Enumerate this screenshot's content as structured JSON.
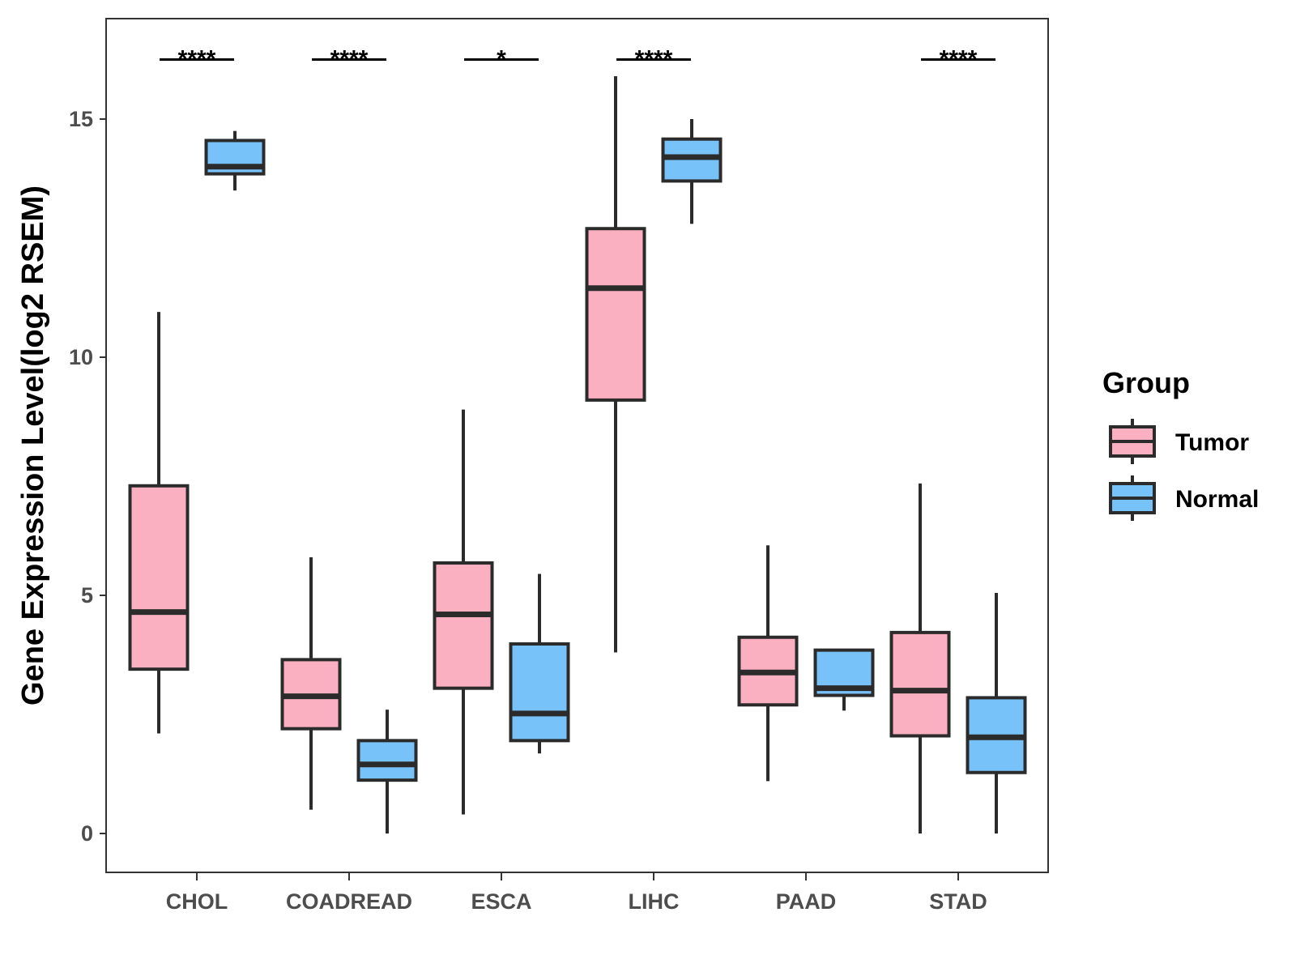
{
  "chart_data": {
    "type": "boxplot",
    "title": "",
    "xlabel": "",
    "ylabel": "Gene Expression Level(log2 RSEM)",
    "ylim": [
      -0.8,
      17.1
    ],
    "yticks": [
      0,
      5,
      10,
      15
    ],
    "categories": [
      "CHOL",
      "COADREAD",
      "ESCA",
      "LIHC",
      "PAAD",
      "STAD"
    ],
    "grid": false,
    "legend": {
      "title": "Group",
      "position": "right",
      "entries": [
        "Tumor",
        "Normal"
      ]
    },
    "series": [
      {
        "name": "Tumor",
        "color": "#FBB0C2",
        "boxes": [
          {
            "min": 2.1,
            "q1": 3.45,
            "median": 4.65,
            "q3": 7.3,
            "max": 10.95
          },
          {
            "min": 0.5,
            "q1": 2.2,
            "median": 2.88,
            "q3": 3.65,
            "max": 5.8
          },
          {
            "min": 0.4,
            "q1": 3.05,
            "median": 4.6,
            "q3": 5.68,
            "max": 8.9
          },
          {
            "min": 3.8,
            "q1": 9.1,
            "median": 11.45,
            "q3": 12.7,
            "max": 15.9
          },
          {
            "min": 1.1,
            "q1": 2.7,
            "median": 3.38,
            "q3": 4.12,
            "max": 6.05
          },
          {
            "min": 0.0,
            "q1": 2.05,
            "median": 3.0,
            "q3": 4.22,
            "max": 7.35
          }
        ]
      },
      {
        "name": "Normal",
        "color": "#77C2F9",
        "boxes": [
          {
            "min": 13.5,
            "q1": 13.85,
            "median": 14.0,
            "q3": 14.55,
            "max": 14.75
          },
          {
            "min": 0.0,
            "q1": 1.12,
            "median": 1.45,
            "q3": 1.95,
            "max": 2.6
          },
          {
            "min": 1.68,
            "q1": 1.95,
            "median": 2.52,
            "q3": 3.98,
            "max": 5.45
          },
          {
            "min": 12.8,
            "q1": 13.7,
            "median": 14.2,
            "q3": 14.58,
            "max": 15.0
          },
          {
            "min": 2.58,
            "q1": 2.9,
            "median": 3.05,
            "q3": 3.85,
            "max": 3.85
          },
          {
            "min": 0.0,
            "q1": 1.28,
            "median": 2.02,
            "q3": 2.85,
            "max": 5.05
          }
        ]
      }
    ],
    "significance": [
      "****",
      "****",
      "*",
      "****",
      "",
      "****"
    ],
    "significance_y": 16.25
  },
  "colors": {
    "tumor": "#FBB0C2",
    "normal": "#77C2F9",
    "outline": "#2b2b2b",
    "axis": "#333333"
  }
}
